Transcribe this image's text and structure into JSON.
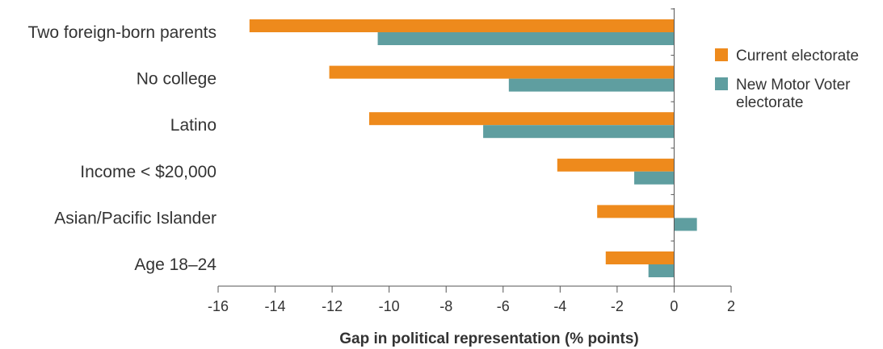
{
  "chart_data": {
    "type": "bar",
    "orientation": "horizontal",
    "categories": [
      "Two foreign-born parents",
      "No college",
      "Latino",
      "Income < $20,000",
      "Asian/Pacific Islander",
      "Age 18–24"
    ],
    "series": [
      {
        "name": "Current electorate",
        "color": "#ee8a1c",
        "values": [
          -14.9,
          -12.1,
          -10.7,
          -4.1,
          -2.7,
          -2.4
        ]
      },
      {
        "name": "New Motor Voter electorate",
        "color": "#5f9ea0",
        "values": [
          -10.4,
          -5.8,
          -6.7,
          -1.4,
          0.8,
          -0.9
        ]
      }
    ],
    "xlabel": "Gap in political representation (% points)",
    "ylabel": "",
    "xlim": [
      -16,
      2
    ],
    "xticks": [
      -16,
      -14,
      -12,
      -10,
      -8,
      -6,
      -4,
      -2,
      0,
      2
    ],
    "grid": false,
    "legend": {
      "position": "right",
      "entries": [
        {
          "lines": [
            "Current electorate"
          ],
          "color": "#ee8a1c"
        },
        {
          "lines": [
            "New Motor Voter",
            "electorate"
          ],
          "color": "#5f9ea0"
        }
      ]
    }
  }
}
